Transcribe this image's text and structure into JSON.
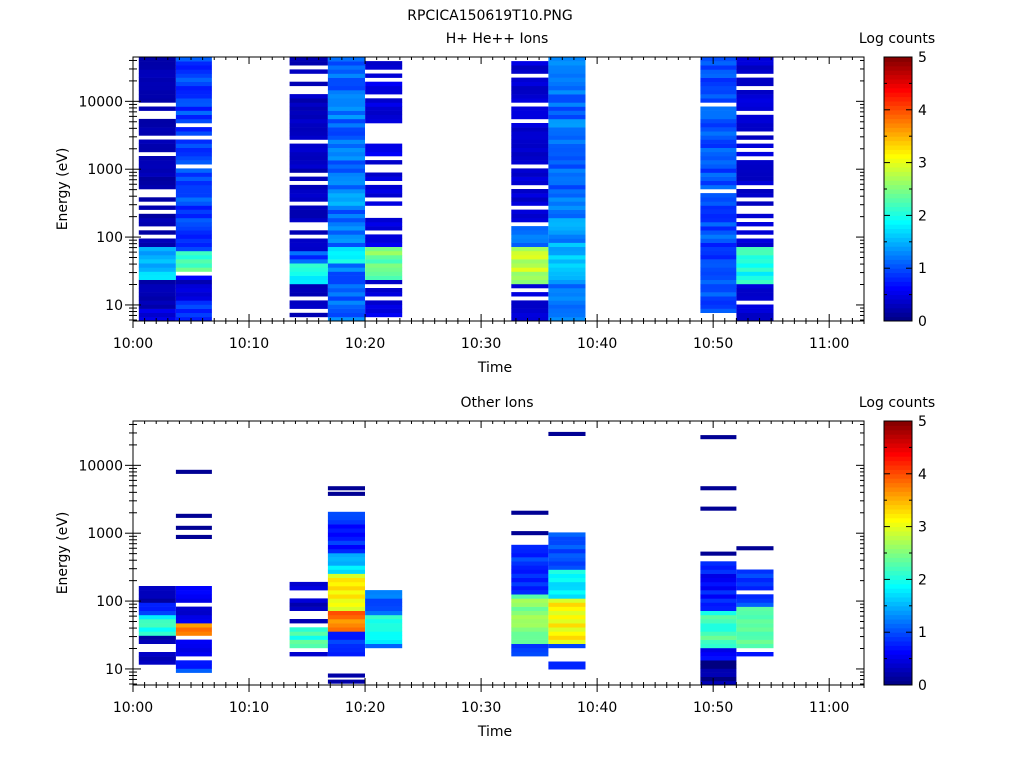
{
  "figure": {
    "title": "RPCICA150619T10.PNG"
  },
  "colorbar": {
    "label": "Log counts",
    "min": 0,
    "max": 5,
    "ticks": [
      "0",
      "1",
      "2",
      "3",
      "4",
      "5"
    ]
  },
  "chart_data": [
    {
      "type": "heatmap",
      "title": "H+ He++ Ions",
      "xlabel": "Time",
      "ylabel": "Energy (eV)",
      "xlim": [
        "10:00",
        "11:03"
      ],
      "ylim": [
        5.8,
        45000
      ],
      "yscale": "log",
      "xticks": [
        "10:00",
        "10:10",
        "10:20",
        "10:30",
        "10:40",
        "10:50",
        "11:00"
      ],
      "yticks": [
        {
          "value": 10,
          "label": "10"
        },
        {
          "value": 100,
          "label": "100"
        },
        {
          "value": 1000,
          "label": "1000"
        },
        {
          "value": 10000,
          "label": "10000"
        }
      ],
      "columns": [
        {
          "t0": "10:00.5",
          "t1": "10:03.7",
          "base": 0.15,
          "amp": 0.15,
          "seed": 3,
          "fill": 0.82,
          "features": [
            {
              "e0": 22,
              "e1": 70,
              "v": 1.6
            },
            {
              "e0": 6,
              "e1": 9,
              "v": 0.3
            }
          ]
        },
        {
          "t0": "10:03.7",
          "t1": "10:06.8",
          "base": 0.7,
          "amp": 0.5,
          "seed": 7,
          "fill": 0.95,
          "features": [
            {
              "e0": 30,
              "e1": 60,
              "v": 2.2
            },
            {
              "e0": 12,
              "e1": 28,
              "v": 0.4
            }
          ]
        },
        {
          "t0": "10:13.5",
          "t1": "10:16.8",
          "base": 0.2,
          "amp": 0.2,
          "seed": 11,
          "fill": 0.75,
          "features": [
            {
              "e0": 20,
              "e1": 40,
              "v": 2.0
            },
            {
              "e0": 40,
              "e1": 60,
              "v": 1.0
            }
          ]
        },
        {
          "t0": "10:16.8",
          "t1": "10:20.0",
          "base": 0.9,
          "amp": 0.5,
          "seed": 13,
          "fill": 1.0,
          "features": [
            {
              "e0": 40,
              "e1": 75,
              "v": 1.8
            },
            {
              "e0": 250,
              "e1": 500,
              "v": 1.4
            }
          ]
        },
        {
          "t0": "10:20.0",
          "t1": "10:23.2",
          "base": 0.35,
          "amp": 0.25,
          "seed": 17,
          "fill": 0.7,
          "features": [
            {
              "e0": 25,
              "e1": 75,
              "v": 2.4
            }
          ]
        },
        {
          "t0": "10:32.6",
          "t1": "10:35.8",
          "base": 0.3,
          "amp": 0.2,
          "seed": 19,
          "fill": 0.85,
          "features": [
            {
              "e0": 20,
              "e1": 70,
              "v": 2.8
            },
            {
              "e0": 70,
              "e1": 150,
              "v": 1.2
            }
          ]
        },
        {
          "t0": "10:35.8",
          "t1": "10:39.0",
          "base": 0.9,
          "amp": 0.5,
          "seed": 23,
          "fill": 1.0,
          "features": [
            {
              "e0": 25,
              "e1": 60,
              "v": 1.6
            },
            {
              "e0": 60,
              "e1": 200,
              "v": 1.4
            }
          ]
        },
        {
          "t0": "10:48.9",
          "t1": "10:52.0",
          "base": 0.8,
          "amp": 0.4,
          "seed": 29,
          "fill": 0.95,
          "features": [
            {
              "e0": 40,
              "e1": 200,
              "v": 1.0
            }
          ]
        },
        {
          "t0": "10:52.0",
          "t1": "10:55.2",
          "base": 0.3,
          "amp": 0.2,
          "seed": 31,
          "fill": 0.8,
          "features": [
            {
              "e0": 20,
              "e1": 70,
              "v": 2.0
            }
          ]
        }
      ]
    },
    {
      "type": "heatmap",
      "title": "Other Ions",
      "xlabel": "Time",
      "ylabel": "Energy (eV)",
      "xlim": [
        "10:00",
        "11:03"
      ],
      "ylim": [
        5.8,
        45000
      ],
      "yscale": "log",
      "xticks": [
        "10:00",
        "10:10",
        "10:20",
        "10:30",
        "10:40",
        "10:50",
        "11:00"
      ],
      "yticks": [
        {
          "value": 10,
          "label": "10"
        },
        {
          "value": 100,
          "label": "100"
        },
        {
          "value": 1000,
          "label": "1000"
        },
        {
          "value": 10000,
          "label": "10000"
        }
      ],
      "columns": [
        {
          "t0": "10:00.5",
          "t1": "10:03.7",
          "seed": 37,
          "fill": 0.65,
          "emin": 9,
          "emax": 170,
          "base": 0.15,
          "amp": 0.2,
          "features": [
            {
              "e0": 30,
              "e1": 60,
              "v": 2.0
            },
            {
              "e0": 60,
              "e1": 100,
              "v": 0.8
            }
          ]
        },
        {
          "t0": "10:03.7",
          "t1": "10:06.8",
          "seed": 41,
          "fill": 0.75,
          "emin": 9,
          "emax": 170,
          "base": 0.35,
          "amp": 0.3,
          "features": [
            {
              "e0": 32,
              "e1": 50,
              "v": 3.8
            },
            {
              "e0": 9,
              "e1": 14,
              "v": 0.9
            }
          ],
          "extra": [
            {
              "e": 8000,
              "v": 0.1
            },
            {
              "e": 1800,
              "v": 0.1
            },
            {
              "e": 1200,
              "v": 0.1
            },
            {
              "e": 880,
              "v": 0.1
            }
          ]
        },
        {
          "t0": "10:13.5",
          "t1": "10:16.8",
          "seed": 43,
          "fill": 0.6,
          "emin": 15,
          "emax": 190,
          "base": 0.2,
          "amp": 0.3,
          "features": [
            {
              "e0": 20,
              "e1": 40,
              "v": 2.2
            }
          ]
        },
        {
          "t0": "10:16.8",
          "t1": "10:20.0",
          "seed": 47,
          "fill": 1.0,
          "emin": 15,
          "emax": 2000,
          "base": 0.6,
          "amp": 0.4,
          "features": [
            {
              "e0": 35,
              "e1": 75,
              "v": 3.8
            },
            {
              "e0": 75,
              "e1": 250,
              "v": 3.1
            },
            {
              "e0": 250,
              "e1": 500,
              "v": 1.6
            }
          ],
          "extra": [
            {
              "e": 4600,
              "v": 0.1
            },
            {
              "e": 3800,
              "v": 0.1
            },
            {
              "e": 8,
              "v": 0.2
            },
            {
              "e": 6.5,
              "v": 0.2
            }
          ]
        },
        {
          "t0": "10:20.0",
          "t1": "10:23.2",
          "seed": 53,
          "fill": 0.95,
          "emin": 20,
          "emax": 150,
          "base": 0.9,
          "amp": 0.4,
          "features": [
            {
              "e0": 25,
              "e1": 60,
              "v": 2.0
            }
          ]
        },
        {
          "t0": "10:32.6",
          "t1": "10:35.8",
          "seed": 59,
          "fill": 0.95,
          "emin": 15,
          "emax": 650,
          "base": 0.7,
          "amp": 0.4,
          "features": [
            {
              "e0": 22,
              "e1": 120,
              "v": 2.5
            }
          ],
          "extra": [
            {
              "e": 2000,
              "v": 0.1
            },
            {
              "e": 1000,
              "v": 0.1
            }
          ]
        },
        {
          "t0": "10:35.8",
          "t1": "10:39.0",
          "seed": 61,
          "fill": 1.0,
          "emin": 20,
          "emax": 1100,
          "base": 0.8,
          "amp": 0.4,
          "features": [
            {
              "e0": 25,
              "e1": 110,
              "v": 3.1
            },
            {
              "e0": 110,
              "e1": 300,
              "v": 1.9
            }
          ],
          "extra": [
            {
              "e": 29000,
              "v": 0.1
            },
            {
              "e": 12,
              "v": 0.8
            },
            {
              "e": 10.5,
              "v": 0.8
            }
          ]
        },
        {
          "t0": "10:48.9",
          "t1": "10:52.0",
          "seed": 67,
          "fill": 0.95,
          "emin": 6,
          "emax": 380,
          "base": 0.5,
          "amp": 0.4,
          "features": [
            {
              "e0": 20,
              "e1": 70,
              "v": 2.2
            },
            {
              "e0": 6,
              "e1": 14,
              "v": 0.1
            }
          ],
          "extra": [
            {
              "e": 26000,
              "v": 0.1
            },
            {
              "e": 4600,
              "v": 0.1
            },
            {
              "e": 2300,
              "v": 0.1
            },
            {
              "e": 500,
              "v": 0.1
            }
          ]
        },
        {
          "t0": "10:52.0",
          "t1": "10:55.2",
          "seed": 71,
          "fill": 0.9,
          "emin": 15,
          "emax": 280,
          "base": 0.7,
          "amp": 0.4,
          "features": [
            {
              "e0": 20,
              "e1": 80,
              "v": 2.4
            }
          ],
          "extra": [
            {
              "e": 600,
              "v": 0.1
            }
          ]
        }
      ]
    }
  ]
}
